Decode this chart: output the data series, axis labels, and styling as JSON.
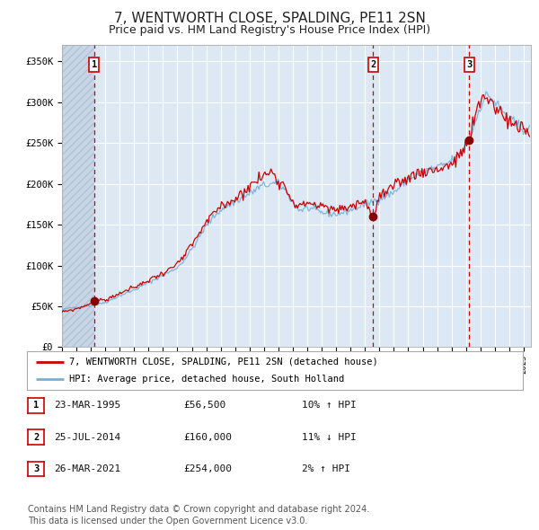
{
  "title": "7, WENTWORTH CLOSE, SPALDING, PE11 2SN",
  "subtitle": "Price paid vs. HM Land Registry's House Price Index (HPI)",
  "title_fontsize": 11,
  "subtitle_fontsize": 9,
  "plot_bg_color": "#dce9f5",
  "hatch_color": "#c0cfe0",
  "grid_color": "#ffffff",
  "red_line_color": "#cc0000",
  "blue_line_color": "#7aaed6",
  "sale_dot_color": "#880000",
  "dashed_line_color": "#cc0000",
  "ylim": [
    0,
    370000
  ],
  "ytick_vals": [
    0,
    50000,
    100000,
    150000,
    200000,
    250000,
    300000,
    350000
  ],
  "ytick_labels": [
    "£0",
    "£50K",
    "£100K",
    "£150K",
    "£200K",
    "£250K",
    "£300K",
    "£350K"
  ],
  "xstart_year": 1993,
  "xend_year": 2025,
  "sale_dates": [
    1995.22,
    2014.56,
    2021.23
  ],
  "sale_prices": [
    56500,
    160000,
    254000
  ],
  "sale_labels": [
    "1",
    "2",
    "3"
  ],
  "legend_line1": "7, WENTWORTH CLOSE, SPALDING, PE11 2SN (detached house)",
  "legend_line2": "HPI: Average price, detached house, South Holland",
  "table_data": [
    [
      "1",
      "23-MAR-1995",
      "£56,500",
      "10% ↑ HPI"
    ],
    [
      "2",
      "25-JUL-2014",
      "£160,000",
      "11% ↓ HPI"
    ],
    [
      "3",
      "26-MAR-2021",
      "£254,000",
      "2% ↑ HPI"
    ]
  ],
  "footnote": "Contains HM Land Registry data © Crown copyright and database right 2024.\nThis data is licensed under the Open Government Licence v3.0.",
  "footnote_fontsize": 7
}
